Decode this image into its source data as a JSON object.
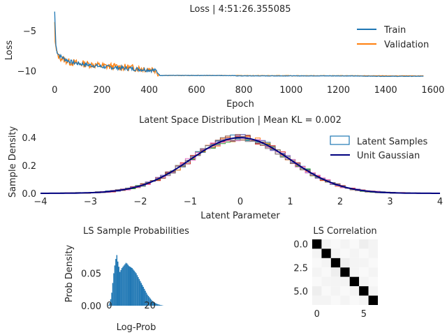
{
  "chart_data": [
    {
      "type": "line",
      "title": "Loss | 4:51:26.355085",
      "xlabel": "Epoch",
      "ylabel": "Loss",
      "xlim": [
        -60,
        1630
      ],
      "ylim": [
        -11.2,
        -2.2
      ],
      "xticks": [
        "0",
        "200",
        "400",
        "600",
        "800",
        "1000",
        "1200",
        "1400",
        "1600"
      ],
      "xtick_values": [
        0,
        200,
        400,
        600,
        800,
        1000,
        1200,
        1400,
        1600
      ],
      "yticks": [
        "−5",
        "−10"
      ],
      "ytick_values": [
        -5,
        -10
      ],
      "grid": false,
      "legend_position": "top-right",
      "series": [
        {
          "name": "Train",
          "color": "#1f77b4",
          "x": [
            0,
            2,
            5,
            10,
            20,
            40,
            60,
            80,
            100,
            150,
            200,
            250,
            300,
            350,
            400,
            430,
            440,
            445,
            450,
            500,
            600,
            700,
            800,
            1000,
            1200,
            1400,
            1560
          ],
          "y": [
            -2.6,
            -4.5,
            -6.8,
            -7.6,
            -8.1,
            -8.5,
            -8.8,
            -9.0,
            -9.1,
            -9.3,
            -9.5,
            -9.6,
            -9.7,
            -9.8,
            -9.9,
            -10.0,
            -10.4,
            -10.6,
            -10.6,
            -10.6,
            -10.6,
            -10.6,
            -10.65,
            -10.65,
            -10.65,
            -10.7,
            -10.7
          ]
        },
        {
          "name": "Validation",
          "color": "#ff7f0e",
          "x": [
            0,
            2,
            5,
            10,
            20,
            40,
            60,
            80,
            100,
            150,
            200,
            250,
            300,
            350,
            400,
            430,
            440,
            445,
            450,
            500,
            600,
            700,
            800,
            1000,
            1200,
            1400,
            1560
          ],
          "y": [
            -3.9,
            -6.4,
            -7.2,
            -7.9,
            -8.3,
            -8.6,
            -8.9,
            -9.0,
            -9.1,
            -9.2,
            -9.4,
            -9.5,
            -9.6,
            -9.7,
            -9.8,
            -9.9,
            -10.5,
            -10.6,
            -10.6,
            -10.6,
            -10.6,
            -10.6,
            -10.62,
            -10.63,
            -10.63,
            -10.65,
            -10.65
          ]
        }
      ]
    },
    {
      "type": "line",
      "title": "Latent Space Distribution | Mean KL = 0.002",
      "xlabel": "Latent Parameter",
      "ylabel": "Sample Density",
      "xlim": [
        -4,
        4
      ],
      "ylim": [
        0,
        0.45
      ],
      "xticks": [
        "−4",
        "−3",
        "−2",
        "−1",
        "0",
        "1",
        "2",
        "3",
        "4"
      ],
      "xtick_values": [
        -4,
        -3,
        -2,
        -1,
        0,
        1,
        2,
        3,
        4
      ],
      "yticks": [
        "0.0",
        "0.2",
        "0.4"
      ],
      "ytick_values": [
        0,
        0.2,
        0.4
      ],
      "grid": false,
      "legend_position": "top-right",
      "series": [
        {
          "name": "Latent Samples",
          "color": "#1f77b4",
          "kind": "step-histograms",
          "colors": [
            "#1f77b4",
            "#ff7f0e",
            "#2ca02c",
            "#d62728",
            "#9467bd",
            "#8c564b",
            "#e377c2",
            "#7f7f7f"
          ]
        },
        {
          "name": "Unit Gaussian",
          "color": "#00007f",
          "kind": "normal-pdf",
          "mean": 0,
          "std": 1
        }
      ]
    },
    {
      "type": "bar",
      "title": "LS Sample Probabilities",
      "xlabel": "Log-Prob",
      "ylabel": "Prob Density",
      "xlim": [
        -1.5,
        28
      ],
      "ylim": [
        0,
        0.1
      ],
      "xticks": [
        "0",
        "20"
      ],
      "xtick_values": [
        0,
        20
      ],
      "yticks": [
        "0.00",
        "0.05"
      ],
      "ytick_values": [
        0,
        0.05
      ],
      "color": "#1f77b4",
      "bin_width": 0.5,
      "x": [
        -0.5,
        0,
        0.5,
        1,
        1.5,
        2,
        2.5,
        3,
        3.5,
        4,
        4.5,
        5,
        5.5,
        6,
        6.5,
        7,
        7.5,
        8,
        8.5,
        9,
        9.5,
        10,
        10.5,
        11,
        11.5,
        12,
        12.5,
        13,
        13.5,
        14,
        14.5,
        15,
        15.5,
        16,
        16.5,
        17,
        17.5,
        18,
        18.5,
        19,
        19.5,
        20,
        20.5,
        21,
        21.5,
        22,
        22.5,
        23,
        23.5,
        24,
        24.5,
        25,
        25.5,
        26
      ],
      "values": [
        0.001,
        0.004,
        0.01,
        0.02,
        0.035,
        0.05,
        0.062,
        0.072,
        0.078,
        0.068,
        0.06,
        0.052,
        0.055,
        0.058,
        0.06,
        0.062,
        0.064,
        0.066,
        0.065,
        0.063,
        0.061,
        0.06,
        0.059,
        0.058,
        0.056,
        0.054,
        0.052,
        0.05,
        0.047,
        0.044,
        0.041,
        0.038,
        0.035,
        0.032,
        0.029,
        0.026,
        0.023,
        0.02,
        0.017,
        0.015,
        0.013,
        0.011,
        0.009,
        0.007,
        0.006,
        0.005,
        0.004,
        0.003,
        0.0025,
        0.002,
        0.0015,
        0.001,
        0.0007,
        0.0004
      ]
    },
    {
      "type": "heatmap",
      "title": "LS Correlation",
      "xticks": [
        "0",
        "5"
      ],
      "xtick_values": [
        0,
        5
      ],
      "yticks": [
        "0.0",
        "2.5",
        "5.0"
      ],
      "ytick_values": [
        0,
        2.5,
        5
      ],
      "range": [
        -0.5,
        6.5
      ],
      "colormap": "gray_r",
      "cells": [
        [
          1.0,
          0.02,
          0.01,
          0.02,
          0.01,
          0.03,
          0.02
        ],
        [
          0.02,
          1.0,
          0.02,
          0.01,
          0.02,
          0.01,
          0.02
        ],
        [
          0.01,
          0.02,
          1.0,
          0.03,
          0.02,
          0.02,
          0.01
        ],
        [
          0.02,
          0.01,
          0.03,
          1.0,
          0.02,
          0.01,
          0.02
        ],
        [
          0.01,
          0.02,
          0.02,
          0.02,
          1.0,
          0.02,
          0.01
        ],
        [
          0.03,
          0.01,
          0.02,
          0.01,
          0.02,
          1.0,
          0.02
        ],
        [
          0.02,
          0.02,
          0.01,
          0.02,
          0.01,
          0.02,
          1.0
        ]
      ]
    }
  ]
}
